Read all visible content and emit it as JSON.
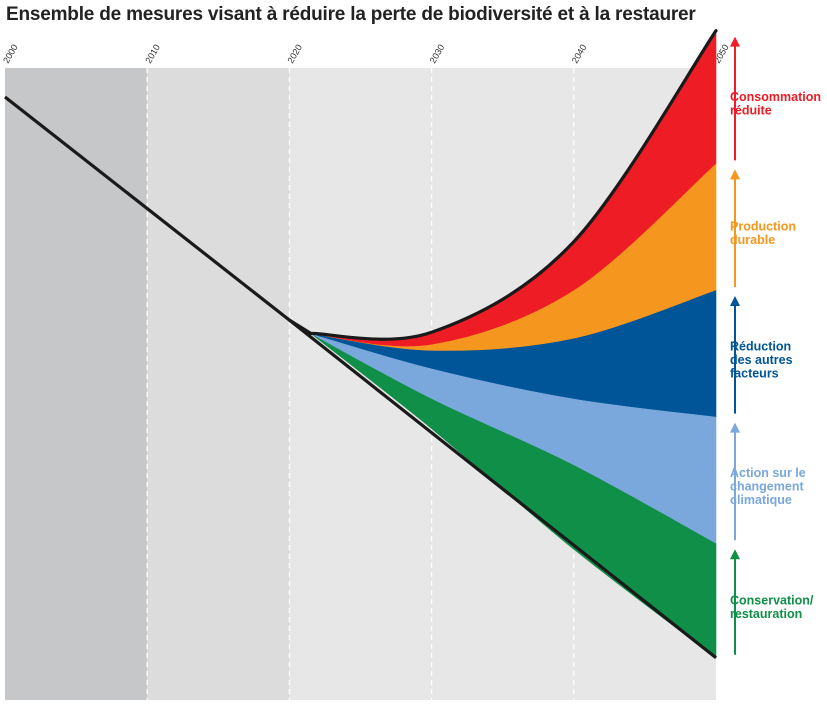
{
  "chart_data": {
    "type": "area",
    "title": "Ensemble de mesures visant à réduire la perte de biodiversité et à la restaurer",
    "x_ticks": [
      "2000",
      "2010",
      "2020",
      "2030",
      "2040",
      "2050"
    ],
    "xlim": [
      2000,
      2050
    ],
    "shaded_periods": [
      {
        "from": 2000,
        "to": 2010,
        "color": "#c6c7c9"
      },
      {
        "from": 2010,
        "to": 2020,
        "color": "#dcdcdd"
      },
      {
        "from": 2020,
        "to": 2050,
        "color": "#e7e7e8"
      }
    ],
    "grid": "vertical dashed",
    "legend_position": "right",
    "baseline": {
      "name": "",
      "x": [
        2000,
        2020,
        2050
      ],
      "y": [
        1.0,
        0.63,
        0.07
      ]
    },
    "bands": [
      {
        "name": "Conservation/\nrestauration",
        "color": "#0f8f48",
        "x": [
          2021.5,
          2030,
          2040,
          2050
        ],
        "lower": [
          0.608,
          0.45,
          0.25,
          0.07
        ],
        "upper": [
          0.608,
          0.5,
          0.39,
          0.26
        ]
      },
      {
        "name": "Action sur le\nchangement\nclimatique",
        "color": "#7aa8dc",
        "x": [
          2021.5,
          2030,
          2040,
          2050
        ],
        "lower": [
          0.608,
          0.5,
          0.39,
          0.26
        ],
        "upper": [
          0.608,
          0.55,
          0.5,
          0.47
        ]
      },
      {
        "name": "Réduction\ndes autres\nfacteurs",
        "color": "#005598",
        "x": [
          2021.5,
          2030,
          2040,
          2050
        ],
        "lower": [
          0.608,
          0.55,
          0.5,
          0.47
        ],
        "upper": [
          0.608,
          0.58,
          0.6,
          0.68
        ]
      },
      {
        "name": "Production\ndurable",
        "color": "#f5961e",
        "x": [
          2021.5,
          2030,
          2040,
          2050
        ],
        "lower": [
          0.608,
          0.58,
          0.6,
          0.68
        ],
        "upper": [
          0.608,
          0.59,
          0.68,
          0.89
        ]
      },
      {
        "name": "Consommation\nréduite",
        "color": "#ee1c25",
        "x": [
          2021.5,
          2030,
          2040,
          2050
        ],
        "lower": [
          0.608,
          0.59,
          0.68,
          0.89
        ],
        "upper": [
          0.608,
          0.61,
          0.76,
          1.11
        ]
      }
    ]
  }
}
